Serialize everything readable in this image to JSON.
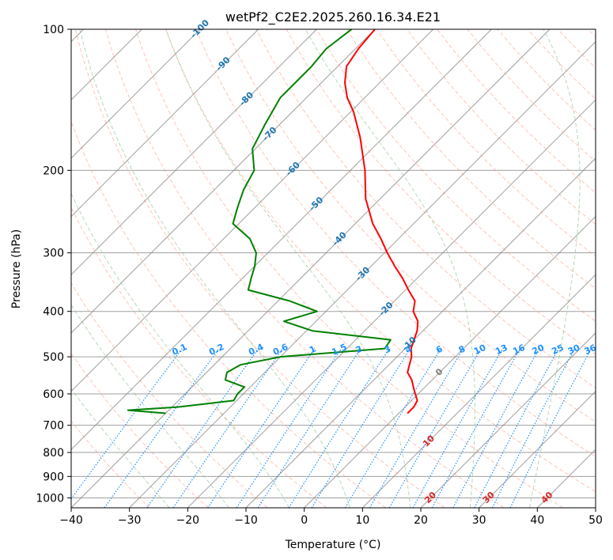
{
  "chart_data": {
    "type": "line",
    "title": "wetPf2_C2E2.2025.260.16.34.E21",
    "xlabel": "Temperature (°C)",
    "ylabel": "Pressure (hPa)",
    "xlim": [
      -40,
      50
    ],
    "ylim": [
      1050,
      100
    ],
    "y_scale": "log",
    "grid": true,
    "x_ticks": [
      -40,
      -30,
      -20,
      -10,
      0,
      10,
      20,
      30,
      40,
      50
    ],
    "y_ticks": [
      100,
      200,
      300,
      400,
      500,
      600,
      700,
      800,
      900,
      1000
    ],
    "skew": true,
    "series": [
      {
        "color": "#ff0000",
        "p": [
          100,
          110,
          120,
          130,
          140,
          150,
          170,
          200,
          230,
          260,
          280,
          300,
          320,
          340,
          360,
          380,
          400,
          420,
          440,
          460,
          480,
          500,
          520,
          540,
          560,
          580,
          600,
          620,
          640,
          660
        ],
        "t": [
          -70.0,
          -69.5,
          -68.5,
          -66.0,
          -63.0,
          -59.5,
          -54.0,
          -47.5,
          -42.5,
          -37.0,
          -33.0,
          -29.5,
          -26.0,
          -22.5,
          -19.5,
          -16.5,
          -15.0,
          -12.5,
          -11.0,
          -10.0,
          -9.0,
          -7.5,
          -6.5,
          -5.5,
          -3.5,
          -2.0,
          -0.5,
          1.0,
          1.5,
          1.5
        ]
      },
      {
        "color": "#008000",
        "p": [
          100,
          110,
          120,
          140,
          160,
          180,
          200,
          220,
          240,
          260,
          280,
          300,
          320,
          340,
          360,
          380,
          400,
          420,
          440,
          460,
          480,
          500,
          520,
          540,
          560,
          580,
          600,
          620,
          640,
          650,
          660
        ],
        "t": [
          -74.0,
          -75.0,
          -74.5,
          -74.5,
          -72.5,
          -70.5,
          -66.5,
          -65.0,
          -63.0,
          -61.0,
          -55.5,
          -52.0,
          -50.0,
          -48.5,
          -47.0,
          -38.0,
          -31.5,
          -35.5,
          -29.0,
          -14.0,
          -13.5,
          -30.0,
          -35.5,
          -36.5,
          -35.5,
          -31.0,
          -31.0,
          -30.5,
          -39.0,
          -47.0,
          -40.0
        ]
      }
    ],
    "dry_adiabats_theta_C": [
      -30,
      -20,
      -10,
      0,
      10,
      20,
      30,
      40,
      50,
      60,
      70,
      80,
      90,
      100,
      110,
      120,
      130,
      140,
      150,
      160,
      170,
      180,
      190,
      200,
      210,
      220
    ],
    "moist_adiabats_thetaw_C": [
      -20,
      -10,
      0,
      10,
      20,
      30,
      40
    ],
    "mixing_ratio_gkg": [
      0.1,
      0.2,
      0.4,
      0.6,
      1,
      1.5,
      2,
      3,
      4,
      6,
      8,
      10,
      13,
      16,
      20,
      25,
      30,
      36
    ],
    "isotherm_labels": [
      "-100",
      "-90",
      "-80",
      "-70",
      "-60",
      "-50",
      "-40",
      "-30",
      "-20",
      "-10",
      "0",
      "10",
      "20",
      "30",
      "40"
    ],
    "colors": {
      "isotherm_grid": "#808080",
      "dry_adiabat": "#ff8c69",
      "moist_adiabat": "#7ab97a",
      "mixing_ratio": "#1e90ff",
      "isotherm_label_cold": "#1f77b4",
      "isotherm_label_zero": "#808080",
      "isotherm_label_warm": "#d62728",
      "special_curve": "#d2b48c"
    }
  }
}
